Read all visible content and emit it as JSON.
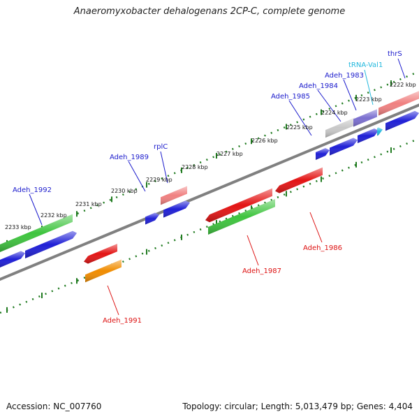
{
  "title": "Anaeromyxobacter dehalogenans 2CP-C, complete genome",
  "footer": {
    "accession": "Accession: NC_007760",
    "summary": "Topology: circular; Length: 5,013,479 bp; Genes: 4,404"
  },
  "colors": {
    "grey": "#9a9a9a",
    "blue": "#1f1fd6",
    "green": "#3ec43e",
    "red": "#e31414",
    "pink": "#f08080",
    "orange": "#f08c00",
    "lightgrey": "#c8c8c8",
    "purple": "#7b6fd0",
    "cyan": "#22b8dd",
    "tick": "#1f7a1f",
    "backbone": "#808080",
    "label_plus": "#1a1acc",
    "label_minus": "#dd1111"
  },
  "scale_labels": [
    "2222 kbp",
    "2223 kbp",
    "2224 kbp",
    "2225 kbp",
    "2226 kbp",
    "2227 kbp",
    "2228 kbp",
    "2229 kbp",
    "2230 kbp",
    "2231 kbp",
    "2232 kbp",
    "2233 kbp"
  ],
  "gene_labels": {
    "thrS": "thrS",
    "tRNA": "tRNA-Val1",
    "adeh1983": "Adeh_1983",
    "adeh1984": "Adeh_1984",
    "adeh1985": "Adeh_1985",
    "rplC": "rplC",
    "adeh1989": "Adeh_1989",
    "adeh1992": "Adeh_1992",
    "adeh1986": "Adeh_1986",
    "adeh1987": "Adeh_1987",
    "adeh1991": "Adeh_1991"
  }
}
